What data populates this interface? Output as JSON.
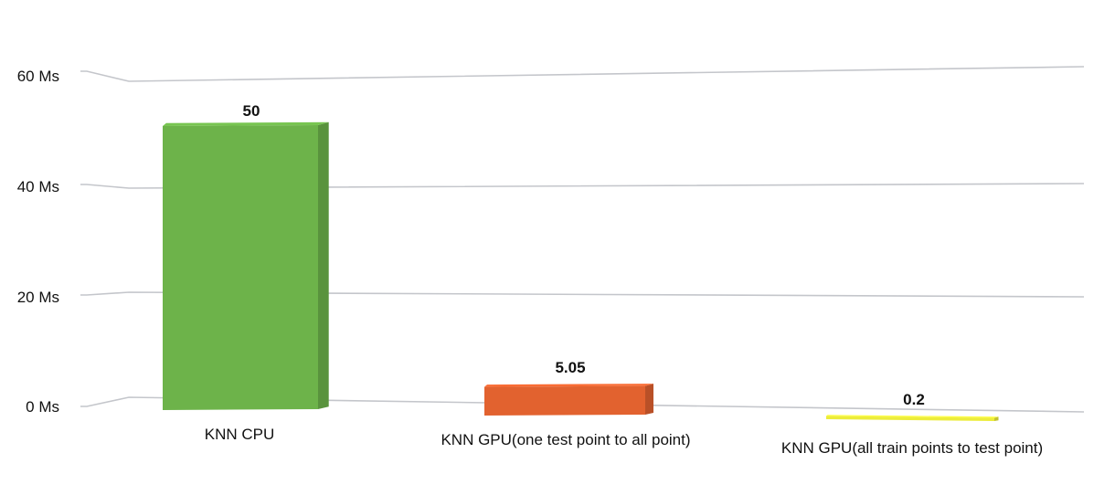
{
  "chart_data": {
    "type": "bar",
    "style": "3d",
    "title": "",
    "xlabel": "",
    "ylabel": "",
    "ylim": [
      0,
      60
    ],
    "yticks": [
      0,
      20,
      40,
      60
    ],
    "ytick_labels": [
      "0 Ms",
      "20 Ms",
      "40 Ms",
      "60 Ms"
    ],
    "grid": true,
    "legend": "none",
    "categories": [
      "KNN CPU",
      "KNN GPU(one test point to all point)",
      "KNN GPU(all train points to test point)"
    ],
    "values": [
      50,
      5.05,
      0.2
    ],
    "data_labels": [
      "50",
      "5.05",
      "0.2"
    ],
    "colors": [
      "#6db34a",
      "#e2622f",
      "#ecec3a"
    ],
    "gridline_color": "#c4c6cb"
  }
}
